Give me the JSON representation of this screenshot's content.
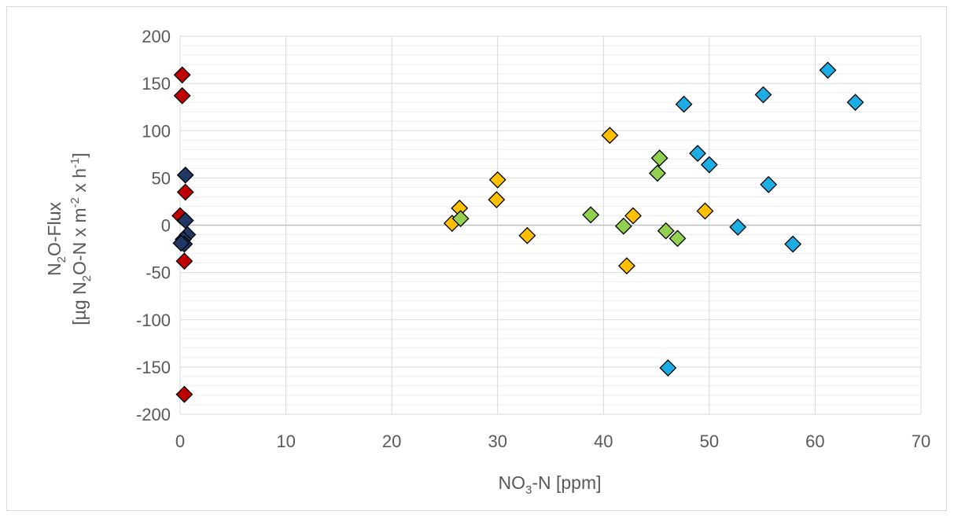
{
  "chart_data": {
    "type": "scatter",
    "xlabel": {
      "pre": "NO",
      "sub": "3",
      "post": "-N [ppm]"
    },
    "ylabel": {
      "line1": {
        "pre": "N",
        "sub": "2",
        "post": "O-Flux"
      },
      "line2": {
        "a": "[µg N",
        "sub": "2",
        "b": "O-N x m",
        "sup1": "-2",
        "c": " x h",
        "sup2": "-1",
        "d": "]"
      }
    },
    "xlim": [
      0,
      70
    ],
    "ylim": [
      -200,
      200
    ],
    "x_ticks": [
      "0",
      "10",
      "20",
      "30",
      "40",
      "50",
      "60",
      "70"
    ],
    "y_ticks": [
      "200",
      "150",
      "100",
      "50",
      "0",
      "-50",
      "-100",
      "-150",
      "-200"
    ],
    "grid": {
      "major": true,
      "minor": true
    },
    "marker": "diamond",
    "series": [
      {
        "color": "#c00000",
        "points": [
          [
            0.2,
            159
          ],
          [
            0.2,
            137
          ],
          [
            0.5,
            35
          ],
          [
            0.0,
            10
          ],
          [
            0.4,
            -38
          ],
          [
            0.4,
            -179
          ]
        ]
      },
      {
        "color": "#1f3864",
        "points": [
          [
            0.5,
            53
          ],
          [
            0.5,
            5
          ],
          [
            0.7,
            -10
          ],
          [
            0.3,
            -15
          ],
          [
            0.4,
            -20
          ],
          [
            0.1,
            -19
          ]
        ]
      },
      {
        "color": "#ffc000",
        "points": [
          [
            25.7,
            2
          ],
          [
            26.4,
            18
          ],
          [
            29.9,
            27
          ],
          [
            30.0,
            48
          ],
          [
            32.8,
            -11
          ],
          [
            40.6,
            95
          ],
          [
            42.8,
            10
          ],
          [
            42.2,
            -43
          ],
          [
            49.6,
            15
          ]
        ]
      },
      {
        "color": "#92d050",
        "points": [
          [
            26.5,
            7
          ],
          [
            38.8,
            11
          ],
          [
            41.9,
            -1
          ],
          [
            45.1,
            55
          ],
          [
            45.3,
            71
          ],
          [
            45.9,
            -6
          ],
          [
            47.0,
            -14
          ]
        ]
      },
      {
        "color": "#1cade4",
        "points": [
          [
            46.1,
            -151
          ],
          [
            47.6,
            128
          ],
          [
            48.9,
            76
          ],
          [
            50.0,
            64
          ],
          [
            52.7,
            -2
          ],
          [
            55.1,
            138
          ],
          [
            55.6,
            43
          ],
          [
            57.9,
            -20
          ],
          [
            61.2,
            164
          ],
          [
            63.8,
            130
          ]
        ]
      }
    ]
  }
}
